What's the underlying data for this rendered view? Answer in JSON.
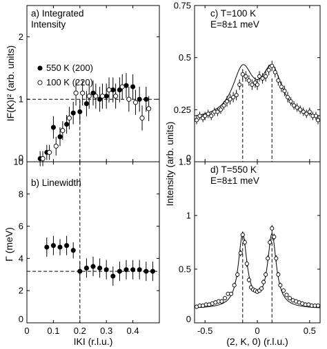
{
  "chart_data": [
    {
      "panel": "a",
      "type": "scatter",
      "title_lines": [
        "a) Integrated",
        "Intensity"
      ],
      "xlabel": "",
      "ylabel": "IF(K)I² (arb. units)",
      "xlim": [
        0,
        0.5
      ],
      "ylim": [
        0,
        2.5
      ],
      "xticks": [
        0,
        0.1,
        0.2,
        0.3,
        0.4
      ],
      "xticklabels": [
        "",
        "",
        "",
        "",
        ""
      ],
      "yticks": [
        0,
        1,
        2
      ],
      "yticklabels": [
        "0",
        "1",
        "2"
      ],
      "reference_lines": {
        "y": 1.0,
        "x": 0.2
      },
      "legend_position": "left-center",
      "series": [
        {
          "name": "550 K (200)",
          "marker": "filled",
          "x": [
            0.05,
            0.075,
            0.1,
            0.125,
            0.15,
            0.175,
            0.2,
            0.225,
            0.25,
            0.275,
            0.3,
            0.325,
            0.35,
            0.375,
            0.4,
            0.425,
            0.45
          ],
          "y": [
            0.05,
            0.15,
            0.55,
            0.4,
            0.6,
            0.78,
            0.8,
            0.93,
            1.1,
            1.0,
            1.05,
            1.15,
            1.15,
            1.22,
            1.2,
            1.0,
            1.0
          ],
          "err": [
            0.12,
            0.12,
            0.18,
            0.15,
            0.15,
            0.18,
            0.18,
            0.2,
            0.2,
            0.2,
            0.2,
            0.2,
            0.2,
            0.2,
            0.2,
            0.2,
            0.2
          ]
        },
        {
          "name": "100 K (220)",
          "marker": "open",
          "x": [
            0.06,
            0.085,
            0.11,
            0.135,
            0.16,
            0.185,
            0.21,
            0.235,
            0.26,
            0.285,
            0.31,
            0.335,
            0.36,
            0.385,
            0.41,
            0.435,
            0.46
          ],
          "y": [
            0.05,
            0.15,
            0.25,
            0.5,
            0.7,
            1.1,
            1.1,
            1.05,
            1.05,
            1.05,
            1.15,
            1.05,
            1.2,
            1.0,
            0.95,
            0.7,
            0.85
          ],
          "err": [
            0.12,
            0.12,
            0.15,
            0.15,
            0.18,
            0.2,
            0.2,
            0.2,
            0.2,
            0.2,
            0.2,
            0.2,
            0.2,
            0.2,
            0.2,
            0.2,
            0.2
          ]
        }
      ]
    },
    {
      "panel": "b",
      "type": "scatter",
      "title": "b) Linewidth",
      "xlabel": "IKI (r.l.u.)",
      "ylabel": "Γ (meV)",
      "xlim": [
        0,
        0.5
      ],
      "ylim": [
        0,
        10
      ],
      "xticks": [
        0,
        0.1,
        0.2,
        0.3,
        0.4
      ],
      "xticklabels": [
        "0",
        "0.1",
        "0.2",
        "0.3",
        "0.4"
      ],
      "yticks": [
        0,
        2,
        4,
        6,
        8,
        10
      ],
      "yticklabels": [
        "0",
        "2",
        "4",
        "6",
        "8",
        "10"
      ],
      "reference_lines": {
        "y": 3.2,
        "x": 0.2
      },
      "series": [
        {
          "name": "",
          "marker": "filled",
          "x": [
            0.075,
            0.1,
            0.125,
            0.15,
            0.175,
            0.2,
            0.225,
            0.25,
            0.275,
            0.3,
            0.325,
            0.35,
            0.375,
            0.4,
            0.425,
            0.45,
            0.475
          ],
          "y": [
            4.7,
            4.8,
            4.7,
            4.8,
            4.5,
            3.2,
            3.4,
            3.5,
            3.4,
            3.3,
            2.9,
            3.2,
            3.3,
            3.3,
            3.3,
            3.2,
            3.2
          ],
          "err": [
            0.6,
            0.6,
            0.5,
            0.6,
            0.5,
            0.6,
            0.6,
            0.6,
            0.6,
            0.6,
            0.6,
            0.6,
            0.6,
            0.6,
            0.6,
            0.6,
            0.6
          ]
        }
      ]
    },
    {
      "panel": "c",
      "type": "scatter",
      "title_lines": [
        "c) T=100 K",
        "E=8±1 meV"
      ],
      "xlabel": "",
      "ylabel": "Intensity (arb. units)",
      "xlim": [
        -0.6,
        0.6
      ],
      "ylim": [
        0,
        0.75
      ],
      "xticks": [
        -0.5,
        0,
        0.5
      ],
      "xticklabels": [
        "",
        "",
        ""
      ],
      "yticks": [
        0,
        0.25,
        0.5,
        0.75
      ],
      "yticklabels": [
        "0",
        "0.25",
        "0.5",
        "0.75"
      ],
      "reference_lines": {
        "x": [
          -0.14,
          0.14
        ]
      },
      "fit": {
        "baseline": 0.2,
        "amplitude": 0.23,
        "center": 0.14,
        "hwhm": 0.12
      },
      "series": [
        {
          "name": "",
          "marker": "open",
          "x": [
            -0.58,
            -0.55,
            -0.52,
            -0.5,
            -0.47,
            -0.44,
            -0.41,
            -0.38,
            -0.35,
            -0.32,
            -0.29,
            -0.26,
            -0.23,
            -0.2,
            -0.17,
            -0.14,
            -0.11,
            -0.08,
            -0.05,
            -0.02,
            0.0,
            0.02,
            0.05,
            0.08,
            0.11,
            0.14,
            0.17,
            0.2,
            0.23,
            0.26,
            0.29,
            0.32,
            0.35,
            0.38,
            0.41,
            0.44,
            0.47,
            0.5,
            0.53,
            0.56,
            0.58
          ],
          "y": [
            0.2,
            0.22,
            0.21,
            0.22,
            0.23,
            0.22,
            0.24,
            0.24,
            0.25,
            0.27,
            0.29,
            0.3,
            0.31,
            0.32,
            0.37,
            0.42,
            0.41,
            0.39,
            0.37,
            0.38,
            0.37,
            0.41,
            0.4,
            0.41,
            0.44,
            0.46,
            0.43,
            0.39,
            0.36,
            0.34,
            0.31,
            0.29,
            0.27,
            0.26,
            0.25,
            0.24,
            0.23,
            0.24,
            0.22,
            0.22,
            0.2
          ],
          "err": [
            0.02,
            0.02,
            0.02,
            0.02,
            0.02,
            0.02,
            0.02,
            0.02,
            0.02,
            0.02,
            0.025,
            0.025,
            0.025,
            0.025,
            0.025,
            0.025,
            0.025,
            0.025,
            0.025,
            0.025,
            0.025,
            0.025,
            0.025,
            0.025,
            0.025,
            0.025,
            0.025,
            0.025,
            0.025,
            0.025,
            0.025,
            0.02,
            0.02,
            0.02,
            0.02,
            0.02,
            0.02,
            0.02,
            0.02,
            0.02,
            0.02
          ]
        }
      ]
    },
    {
      "panel": "d",
      "type": "scatter",
      "title_lines": [
        "d) T=550 K",
        "E=8±1 meV"
      ],
      "xlabel": "(2, K, 0) (r.l.u.)",
      "ylabel": "Intensity (arb. units)",
      "xlim": [
        -0.6,
        0.6
      ],
      "ylim": [
        0,
        1.5
      ],
      "xticks": [
        -0.5,
        0,
        0.5
      ],
      "xticklabels": [
        "-0.5",
        "0",
        "0.5"
      ],
      "yticks": [
        0,
        0.5,
        1,
        1.5
      ],
      "yticklabels": [
        "0",
        "0.5",
        "1",
        "1.5"
      ],
      "reference_lines": {
        "x": [
          -0.14,
          0.14
        ]
      },
      "fit": {
        "baseline": 0.13,
        "amplitude": 0.68,
        "center": 0.14,
        "hwhm": 0.05
      },
      "series": [
        {
          "name": "",
          "marker": "open",
          "x": [
            -0.58,
            -0.55,
            -0.52,
            -0.49,
            -0.46,
            -0.43,
            -0.4,
            -0.37,
            -0.34,
            -0.31,
            -0.28,
            -0.25,
            -0.22,
            -0.19,
            -0.16,
            -0.14,
            -0.12,
            -0.1,
            -0.08,
            -0.06,
            -0.04,
            -0.02,
            0.0,
            0.02,
            0.04,
            0.06,
            0.08,
            0.1,
            0.12,
            0.14,
            0.16,
            0.18,
            0.2,
            0.22,
            0.25,
            0.28,
            0.31,
            0.34,
            0.37,
            0.4,
            0.43,
            0.46,
            0.49,
            0.52,
            0.55,
            0.58
          ],
          "y": [
            0.15,
            0.16,
            0.16,
            0.17,
            0.17,
            0.18,
            0.19,
            0.2,
            0.2,
            0.23,
            0.27,
            0.27,
            0.35,
            0.45,
            0.65,
            0.82,
            0.75,
            0.55,
            0.4,
            0.33,
            0.31,
            0.3,
            0.29,
            0.3,
            0.32,
            0.38,
            0.45,
            0.6,
            0.75,
            0.88,
            0.8,
            0.6,
            0.45,
            0.35,
            0.3,
            0.26,
            0.23,
            0.21,
            0.2,
            0.19,
            0.18,
            0.17,
            0.17,
            0.16,
            0.16,
            0.16
          ],
          "err": [
            0.02,
            0.02,
            0.02,
            0.02,
            0.02,
            0.02,
            0.02,
            0.02,
            0.02,
            0.02,
            0.02,
            0.02,
            0.025,
            0.025,
            0.03,
            0.03,
            0.03,
            0.03,
            0.025,
            0.025,
            0.02,
            0.02,
            0.02,
            0.02,
            0.02,
            0.025,
            0.025,
            0.03,
            0.03,
            0.03,
            0.03,
            0.03,
            0.025,
            0.025,
            0.02,
            0.02,
            0.02,
            0.02,
            0.02,
            0.02,
            0.02,
            0.02,
            0.02,
            0.02,
            0.02,
            0.02
          ]
        }
      ]
    }
  ]
}
